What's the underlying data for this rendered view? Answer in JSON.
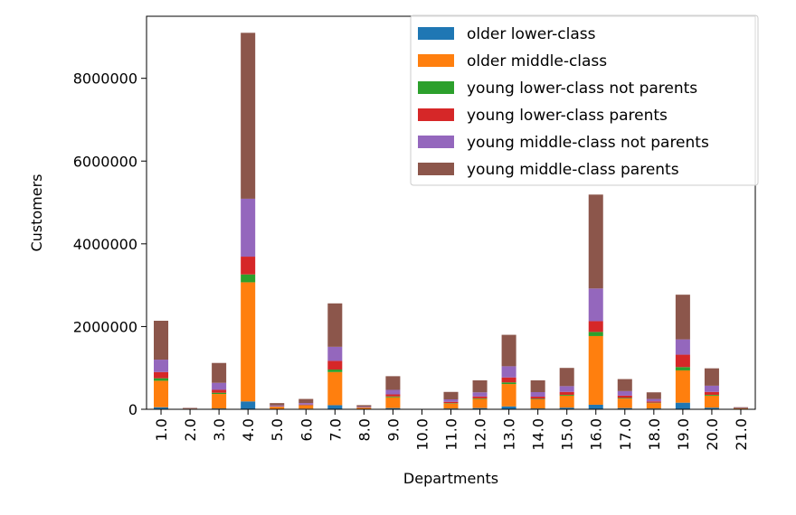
{
  "chart_data": {
    "type": "bar",
    "stacked": true,
    "xlabel": "Departments",
    "ylabel": "Customers",
    "ylim": [
      0,
      9500000
    ],
    "yticks": [
      0,
      2000000,
      4000000,
      6000000,
      8000000
    ],
    "ytick_labels": [
      "0",
      "2000000",
      "4000000",
      "6000000",
      "8000000"
    ],
    "grid": false,
    "legend_position": "top-right",
    "categories": [
      "1.0",
      "2.0",
      "3.0",
      "4.0",
      "5.0",
      "6.0",
      "7.0",
      "8.0",
      "9.0",
      "10.0",
      "11.0",
      "12.0",
      "13.0",
      "14.0",
      "15.0",
      "16.0",
      "17.0",
      "18.0",
      "19.0",
      "20.0",
      "21.0"
    ],
    "series": [
      {
        "name": "older lower-class",
        "color": "#1f77b4",
        "values": [
          50000,
          0,
          20000,
          190000,
          10000,
          15000,
          100000,
          8000,
          30000,
          0,
          20000,
          30000,
          70000,
          20000,
          40000,
          110000,
          30000,
          20000,
          160000,
          40000,
          5000
        ]
      },
      {
        "name": "older middle-class",
        "color": "#ff7f0e",
        "values": [
          640000,
          15000,
          350000,
          2880000,
          50000,
          80000,
          800000,
          30000,
          260000,
          3000,
          120000,
          220000,
          540000,
          220000,
          290000,
          1660000,
          230000,
          130000,
          780000,
          290000,
          15000
        ]
      },
      {
        "name": "young lower-class not parents",
        "color": "#2ca02c",
        "values": [
          60000,
          2000,
          30000,
          190000,
          3000,
          5000,
          60000,
          2000,
          20000,
          0,
          10000,
          15000,
          40000,
          15000,
          20000,
          100000,
          15000,
          10000,
          80000,
          20000,
          1000
        ]
      },
      {
        "name": "young lower-class parents",
        "color": "#d62728",
        "values": [
          150000,
          3000,
          70000,
          430000,
          8000,
          15000,
          210000,
          5000,
          50000,
          1000,
          30000,
          45000,
          120000,
          50000,
          70000,
          260000,
          55000,
          30000,
          300000,
          70000,
          3000
        ]
      },
      {
        "name": "young middle-class not parents",
        "color": "#9467bd",
        "values": [
          300000,
          5000,
          170000,
          1400000,
          20000,
          35000,
          340000,
          15000,
          110000,
          2000,
          60000,
          100000,
          270000,
          110000,
          140000,
          790000,
          110000,
          60000,
          370000,
          150000,
          6000
        ]
      },
      {
        "name": "young middle-class parents",
        "color": "#8c564b",
        "values": [
          940000,
          10000,
          480000,
          4010000,
          59000,
          100000,
          1050000,
          40000,
          330000,
          4000,
          180000,
          290000,
          760000,
          285000,
          440000,
          2270000,
          290000,
          160000,
          1080000,
          420000,
          20000
        ]
      }
    ]
  }
}
